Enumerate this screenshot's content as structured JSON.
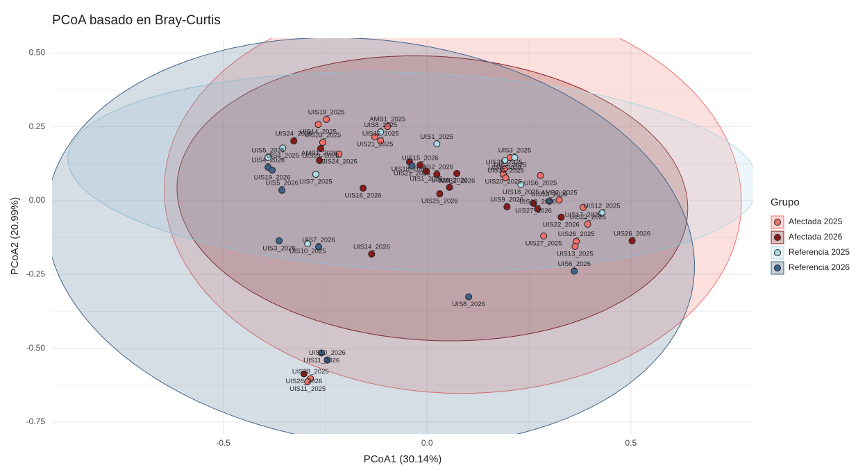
{
  "chart_data": {
    "type": "scatter",
    "title": "PCoA basado en Bray-Curtis",
    "x_label": "PCoA1 (30.14%)",
    "y_label": "PCoA2 (20.99%)",
    "xlim": [
      -0.92,
      0.8
    ],
    "ylim": [
      -0.79,
      0.55
    ],
    "xticks": [
      -0.5,
      {
        "value": 0,
        "label": "0.0"
      },
      0.5
    ],
    "yticks": [
      {
        "value": 0.5,
        "label": "0.50"
      },
      0.25,
      {
        "value": 0,
        "label": "0.00"
      },
      -0.25,
      {
        "value": -0.5,
        "label": "-0.50"
      },
      -0.75
    ],
    "grid": true,
    "ellipses": true,
    "legend_title": "Grupo",
    "legend_position": "right",
    "series": [
      {
        "name": "Afectada 2025",
        "color": "#f0706a",
        "labels": [
          "UIS19_2025",
          "UIS14_2025",
          "UIS23_2025",
          "UIS24_2025",
          "AMB1_2025",
          "UIS21_2025",
          "UIS16_2025",
          "UIS2_2025",
          "UIS25_2025",
          "UIS20_2025",
          "UIS15_2025",
          "UIS6_2025",
          "AMB2_2025",
          "UIS17_2025",
          "UIS22_2025",
          "UIS27_2025",
          "UIS26_2025",
          "UIS13_2025",
          "UIS28_2025",
          "UIS11_2025"
        ],
        "x": [
          -0.247,
          -0.267,
          -0.256,
          -0.216,
          -0.097,
          -0.128,
          -0.114,
          0.204,
          0.189,
          0.187,
          0.193,
          0.278,
          0.324,
          0.383,
          0.394,
          0.286,
          0.366,
          0.363,
          -0.286,
          -0.293
        ],
        "y": [
          0.275,
          0.258,
          0.197,
          0.157,
          0.251,
          0.216,
          0.202,
          0.146,
          0.106,
          0.089,
          0.077,
          0.085,
          0.002,
          -0.023,
          -0.08,
          -0.12,
          -0.138,
          -0.155,
          -0.603,
          -0.613
        ]
      },
      {
        "name": "Afectada 2026",
        "color": "#8b1a1a",
        "labels": [
          "UIS24_2026",
          "UIS23_2026",
          "AMB1_2026",
          "UIS16_2026",
          "UIS14_2026",
          "UIS18_2026",
          "UIS15_2026",
          "UIS1_2026",
          "UIS2_2026",
          "AMB2_2026",
          "UIS20_2026",
          "UIS25_2026",
          "UIS9_2026",
          "UIS27_2026",
          "UIS12_2026",
          "UIS22_2026",
          "UIS26_2026",
          "UIS28_2026"
        ],
        "x": [
          -0.327,
          -0.261,
          -0.264,
          -0.157,
          -0.136,
          -0.043,
          -0.017,
          -0.002,
          0.024,
          0.073,
          0.055,
          0.031,
          0.196,
          0.261,
          0.271,
          0.329,
          0.503,
          -0.302
        ],
        "y": [
          0.202,
          0.176,
          0.136,
          0.042,
          -0.181,
          0.131,
          0.12,
          0.099,
          0.089,
          0.092,
          0.045,
          0.023,
          -0.021,
          -0.009,
          -0.028,
          -0.056,
          -0.136,
          -0.587
        ]
      },
      {
        "name": "Referencia 2025",
        "color": "#add8e6",
        "labels": [
          "UIS8_2025",
          "UIS4_2025",
          "UIS5_2025",
          "UIS7_2025",
          "UIS1_2025",
          "UIS9_2025",
          "UIS3_2025",
          "UIS18_2025",
          "UIS12_2025",
          "UIS10_2025"
        ],
        "x": [
          -0.114,
          -0.354,
          -0.39,
          -0.273,
          0.024,
          0.191,
          0.215,
          0.23,
          0.429,
          -0.293
        ],
        "y": [
          0.232,
          0.178,
          0.146,
          0.089,
          0.192,
          0.136,
          0.146,
          0.054,
          -0.042,
          -0.146
        ]
      },
      {
        "name": "Referencia 2026",
        "color": "#3e6389",
        "labels": [
          "UIS4_2026",
          "UIS19_2026",
          "UIS5_2026",
          "UIS21_2026",
          "UIS13_2026",
          "UIS3_2026",
          "UIS7_2026",
          "UIS8_2026",
          "UIS6_2026",
          "UIS11_2026",
          "UIS10_2026"
        ],
        "x": [
          -0.39,
          -0.38,
          -0.356,
          -0.037,
          0.3,
          -0.363,
          -0.266,
          0.102,
          0.361,
          -0.259,
          -0.245
        ],
        "y": [
          0.113,
          0.103,
          0.035,
          0.117,
          -0.002,
          -0.136,
          -0.157,
          -0.326,
          -0.239,
          -0.516,
          -0.54
        ]
      }
    ]
  }
}
